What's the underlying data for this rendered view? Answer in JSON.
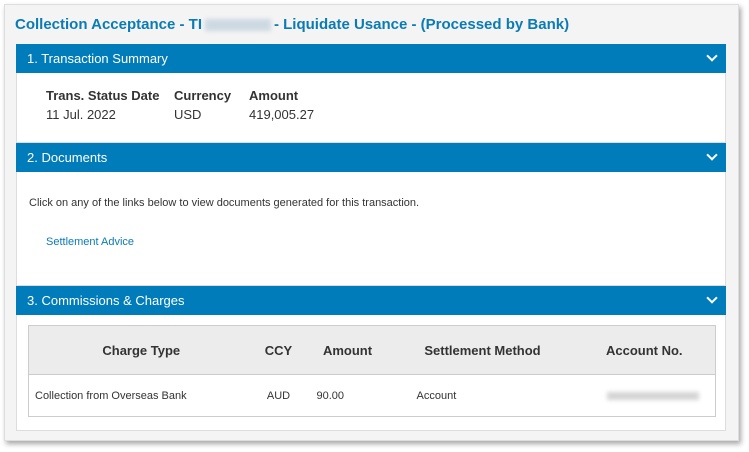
{
  "page": {
    "title_prefix": "Collection Acceptance - TI",
    "title_suffix": "- Liquidate Usance - (Processed by Bank)"
  },
  "summary": {
    "header": "1. Transaction Summary",
    "fields": [
      {
        "label": "Trans. Status Date",
        "value": "11 Jul. 2022"
      },
      {
        "label": "Currency",
        "value": "USD"
      },
      {
        "label": "Amount",
        "value": "419,005.27"
      }
    ]
  },
  "documents": {
    "header": "2. Documents",
    "intro": "Click on any of the links below to view documents generated for this transaction.",
    "links": [
      "Settlement Advice"
    ]
  },
  "charges": {
    "header": "3. Commissions & Charges",
    "columns": [
      "Charge Type",
      "CCY",
      "Amount",
      "Settlement Method",
      "Account No."
    ],
    "rows": [
      {
        "charge_type": "Collection from Overseas Bank",
        "ccy": "AUD",
        "amount": "90.00",
        "method": "Account"
      }
    ]
  },
  "colors": {
    "accent": "#007cba",
    "title": "#0b7bb5"
  }
}
